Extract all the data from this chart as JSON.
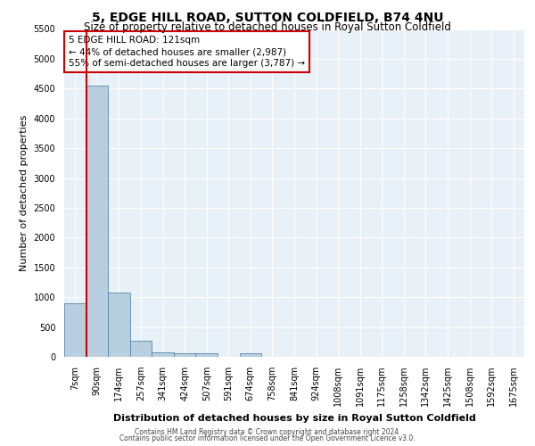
{
  "title": "5, EDGE HILL ROAD, SUTTON COLDFIELD, B74 4NU",
  "subtitle": "Size of property relative to detached houses in Royal Sutton Coldfield",
  "xlabel": "Distribution of detached houses by size in Royal Sutton Coldfield",
  "ylabel": "Number of detached properties",
  "footnote1": "Contains HM Land Registry data © Crown copyright and database right 2024.",
  "footnote2": "Contains public sector information licensed under the Open Government Licence v3.0.",
  "bar_labels": [
    "7sqm",
    "90sqm",
    "174sqm",
    "257sqm",
    "341sqm",
    "424sqm",
    "507sqm",
    "591sqm",
    "674sqm",
    "758sqm",
    "841sqm",
    "924sqm",
    "1008sqm",
    "1091sqm",
    "1175sqm",
    "1258sqm",
    "1342sqm",
    "1425sqm",
    "1508sqm",
    "1592sqm",
    "1675sqm"
  ],
  "bar_values": [
    900,
    4550,
    1075,
    275,
    75,
    60,
    55,
    0,
    55,
    0,
    0,
    0,
    0,
    0,
    0,
    0,
    0,
    0,
    0,
    0,
    0
  ],
  "bar_color": "#b8cfe0",
  "bar_edge_color": "#5588aa",
  "vline_color": "#cc0000",
  "vline_pos": 0.575,
  "ylim": [
    0,
    5500
  ],
  "yticks": [
    0,
    500,
    1000,
    1500,
    2000,
    2500,
    3000,
    3500,
    4000,
    4500,
    5000,
    5500
  ],
  "annotation_text": "5 EDGE HILL ROAD: 121sqm\n← 44% of detached houses are smaller (2,987)\n55% of semi-detached houses are larger (3,787) →",
  "annotation_box_color": "#cc0000",
  "bg_color": "#ffffff",
  "plot_bg_color": "#e8f0f8",
  "grid_color": "#ffffff",
  "title_fontsize": 10,
  "subtitle_fontsize": 8.5,
  "xlabel_fontsize": 8,
  "ylabel_fontsize": 8,
  "tick_fontsize": 7,
  "ann_fontsize": 7.5
}
